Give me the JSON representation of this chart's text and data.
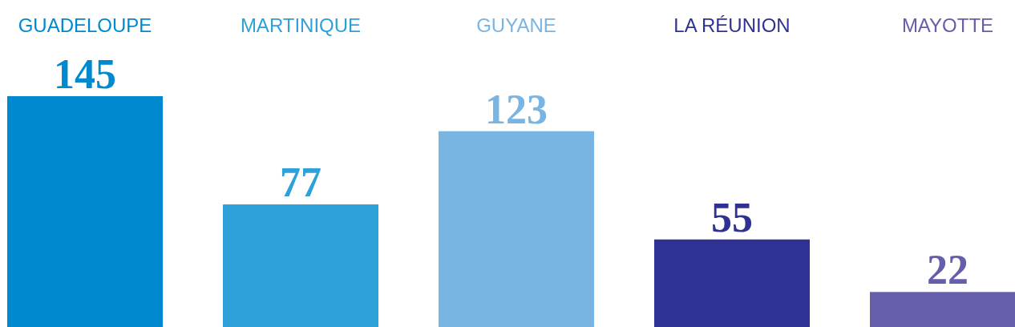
{
  "chart_data": {
    "type": "bar",
    "categories": [
      "GUADELOUPE",
      "MARTINIQUE",
      "GUYANE",
      "LA RÉUNION",
      "MAYOTTE"
    ],
    "values": [
      145,
      77,
      123,
      55,
      22
    ],
    "colors": [
      "#0089cf",
      "#2ea1da",
      "#79b5e3",
      "#303293",
      "#655eab"
    ],
    "data_labels": true
  }
}
